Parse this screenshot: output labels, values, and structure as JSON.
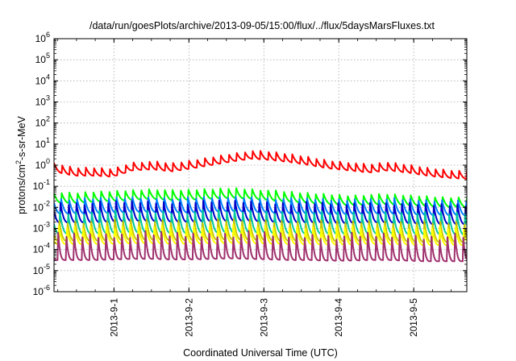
{
  "chart_data": {
    "type": "line",
    "title": "/data/run/goesPlots/archive/2013-09-05/15:00/flux/../flux/5daysMarsFluxes.txt",
    "xlabel": "Coordinated Universal Time (UTC)",
    "ylabel_parts": [
      "protons/cm",
      "2",
      "-s-sr-MeV"
    ],
    "y_scale": "log",
    "ylim": [
      1e-06,
      1000000.0
    ],
    "xlim": [
      "2013-08-31T04:48",
      "2013-09-05T17:00"
    ],
    "y_ticks": [
      {
        "base": "10",
        "exp": "-6"
      },
      {
        "base": "10",
        "exp": "-5"
      },
      {
        "base": "10",
        "exp": "-4"
      },
      {
        "base": "10",
        "exp": "-3"
      },
      {
        "base": "10",
        "exp": "-2"
      },
      {
        "base": "10",
        "exp": "-1"
      },
      {
        "base": "10",
        "exp": "0"
      },
      {
        "base": "10",
        "exp": "1"
      },
      {
        "base": "10",
        "exp": "2"
      },
      {
        "base": "10",
        "exp": "3"
      },
      {
        "base": "10",
        "exp": "4"
      },
      {
        "base": "10",
        "exp": "5"
      },
      {
        "base": "10",
        "exp": "6"
      }
    ],
    "x_ticks": [
      "2013-9-1",
      "2013-9-2",
      "2013-9-3",
      "2013-9-4",
      "2013-9-5"
    ],
    "grid": true,
    "series": [
      {
        "color": "#ff0000",
        "base": [
          0.8,
          0.5,
          0.5,
          0.45,
          0.9,
          1.0,
          0.8,
          1.1,
          1.6,
          2.3,
          3.2,
          2.8,
          2.2,
          1.6,
          1.1,
          0.9,
          0.7,
          0.9,
          0.7,
          0.5,
          0.4,
          0.35
        ],
        "cycles": 52,
        "sharp": 2.2,
        "amp": 0.4
      },
      {
        "color": "#00ff00",
        "base": [
          0.03,
          0.028,
          0.032,
          0.035,
          0.04,
          0.045,
          0.038,
          0.04,
          0.045,
          0.05,
          0.045,
          0.038,
          0.032,
          0.028,
          0.025,
          0.022,
          0.024,
          0.025,
          0.022,
          0.02,
          0.018,
          0.018
        ],
        "cycles": 52,
        "sharp": 2.2,
        "amp": 0.5
      },
      {
        "color": "#0080ff",
        "base": [
          0.012,
          0.012,
          0.012,
          0.013,
          0.014,
          0.014,
          0.013,
          0.013,
          0.014,
          0.015,
          0.014,
          0.013,
          0.012,
          0.012,
          0.011,
          0.011,
          0.012,
          0.012,
          0.011,
          0.01,
          0.01,
          0.01
        ],
        "cycles": 52,
        "sharp": 2.4,
        "amp": 0.75
      },
      {
        "color": "#0000c8",
        "base": [
          0.006,
          0.006,
          0.006,
          0.0065,
          0.007,
          0.007,
          0.0065,
          0.0065,
          0.007,
          0.0072,
          0.007,
          0.0065,
          0.006,
          0.006,
          0.0055,
          0.0055,
          0.006,
          0.006,
          0.0055,
          0.005,
          0.005,
          0.005
        ],
        "cycles": 52,
        "sharp": 2.6,
        "amp": 1.0
      },
      {
        "color": "#00c8a0",
        "base": [
          0.002,
          0.002,
          0.002,
          0.0021,
          0.0022,
          0.0022,
          0.0021,
          0.0021,
          0.0022,
          0.0023,
          0.0022,
          0.0021,
          0.002,
          0.002,
          0.0019,
          0.0019,
          0.002,
          0.002,
          0.0019,
          0.0018,
          0.0018,
          0.0018
        ],
        "cycles": 52,
        "sharp": 2.6,
        "amp": 1.1
      },
      {
        "color": "#c8c800",
        "base": [
          0.0008,
          0.0008,
          0.0008,
          0.00085,
          0.0009,
          0.0009,
          0.00085,
          0.00085,
          0.0009,
          0.00092,
          0.0009,
          0.00085,
          0.0008,
          0.0008,
          0.00075,
          0.00075,
          0.0008,
          0.0008,
          0.00075,
          0.0007,
          0.0007,
          0.0007
        ],
        "cycles": 52,
        "sharp": 2.8,
        "amp": 1.0
      },
      {
        "color": "#ffff00",
        "base": [
          0.0005,
          0.0005,
          0.0005,
          0.00052,
          0.00055,
          0.00055,
          0.00052,
          0.00052,
          0.00055,
          0.00056,
          0.00055,
          0.00052,
          0.0005,
          0.0005,
          0.00048,
          0.00048,
          0.0005,
          0.0005,
          0.00048,
          0.00045,
          0.00045,
          0.00045
        ],
        "cycles": 52,
        "sharp": 2.8,
        "amp": 0.9
      },
      {
        "color": "#a0306e",
        "base": [
          0.00015,
          0.00015,
          0.00015,
          0.00016,
          0.00017,
          0.00017,
          0.00016,
          0.00016,
          0.00017,
          0.00018,
          0.00017,
          0.00016,
          0.00015,
          0.00015,
          0.00014,
          0.00014,
          0.00015,
          0.00015,
          0.00014,
          0.00013,
          0.00013,
          0.00013
        ],
        "cycles": 52,
        "sharp": 4.0,
        "amp": 1.35
      }
    ]
  }
}
